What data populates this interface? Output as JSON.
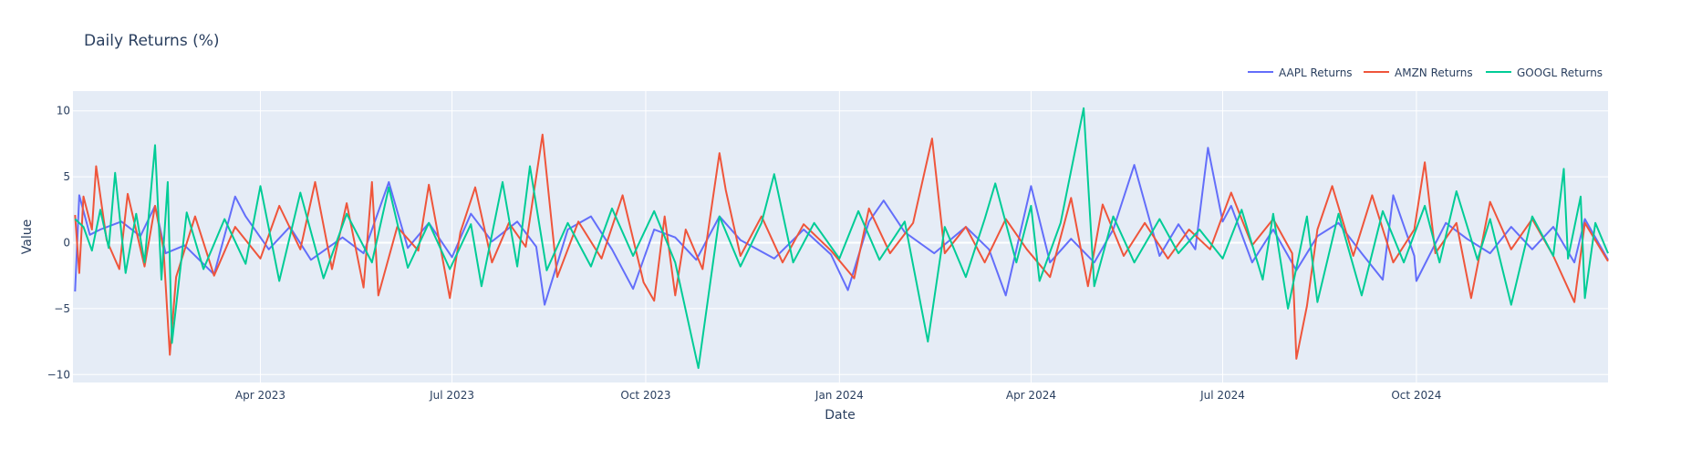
{
  "chart_data": {
    "type": "line",
    "title": "Daily Returns (%)",
    "xlabel": "Date",
    "ylabel": "Value",
    "x_range": [
      "2023-01-02",
      "2024-12-31"
    ],
    "ylim": [
      -10.6,
      11.5
    ],
    "x_ticks": [
      {
        "date": "2023-04-01",
        "label": "Apr 2023"
      },
      {
        "date": "2023-07-01",
        "label": "Jul 2023"
      },
      {
        "date": "2023-10-01",
        "label": "Oct 2023"
      },
      {
        "date": "2024-01-01",
        "label": "Jan 2024"
      },
      {
        "date": "2024-04-01",
        "label": "Apr 2024"
      },
      {
        "date": "2024-07-01",
        "label": "Jul 2024"
      },
      {
        "date": "2024-10-01",
        "label": "Oct 2024"
      }
    ],
    "y_ticks": [
      {
        "value": 10,
        "label": "10"
      },
      {
        "value": 5,
        "label": "5"
      },
      {
        "value": 0,
        "label": "0"
      },
      {
        "value": -5,
        "label": "−5"
      },
      {
        "value": -10,
        "label": "−10"
      }
    ],
    "grid": true,
    "legend_position": "top-right",
    "background": "#E5ECF6",
    "series": [
      {
        "name": "AAPL Returns",
        "color": "#636EFA",
        "points": [
          [
            "2023-01-03",
            -3.7
          ],
          [
            "2023-01-05",
            3.6
          ],
          [
            "2023-01-10",
            0.6
          ],
          [
            "2023-01-15",
            1.0
          ],
          [
            "2023-01-25",
            1.6
          ],
          [
            "2023-02-03",
            0.5
          ],
          [
            "2023-02-10",
            2.8
          ],
          [
            "2023-02-15",
            -0.8
          ],
          [
            "2023-02-24",
            -0.2
          ],
          [
            "2023-03-10",
            -2.4
          ],
          [
            "2023-03-20",
            3.5
          ],
          [
            "2023-03-25",
            2.0
          ],
          [
            "2023-04-05",
            -0.5
          ],
          [
            "2023-04-15",
            1.2
          ],
          [
            "2023-04-25",
            -1.3
          ],
          [
            "2023-05-10",
            0.4
          ],
          [
            "2023-05-20",
            -0.8
          ],
          [
            "2023-06-01",
            4.6
          ],
          [
            "2023-06-10",
            -0.4
          ],
          [
            "2023-06-20",
            1.5
          ],
          [
            "2023-07-01",
            -1.1
          ],
          [
            "2023-07-10",
            2.2
          ],
          [
            "2023-07-20",
            0.1
          ],
          [
            "2023-08-01",
            1.6
          ],
          [
            "2023-08-10",
            -0.3
          ],
          [
            "2023-08-14",
            -4.7
          ],
          [
            "2023-08-25",
            1.0
          ],
          [
            "2023-09-05",
            2.0
          ],
          [
            "2023-09-15",
            -0.5
          ],
          [
            "2023-09-25",
            -3.5
          ],
          [
            "2023-10-05",
            1.0
          ],
          [
            "2023-10-15",
            0.4
          ],
          [
            "2023-10-25",
            -1.3
          ],
          [
            "2023-11-05",
            2.0
          ],
          [
            "2023-11-15",
            0.2
          ],
          [
            "2023-12-01",
            -1.2
          ],
          [
            "2023-12-15",
            1.0
          ],
          [
            "2023-12-28",
            -0.9
          ],
          [
            "2024-01-05",
            -3.6
          ],
          [
            "2024-01-15",
            1.6
          ],
          [
            "2024-01-22",
            3.2
          ],
          [
            "2024-02-01",
            0.8
          ],
          [
            "2024-02-15",
            -0.8
          ],
          [
            "2024-03-01",
            1.2
          ],
          [
            "2024-03-12",
            -0.5
          ],
          [
            "2024-03-20",
            -4.0
          ],
          [
            "2024-04-01",
            4.3
          ],
          [
            "2024-04-10",
            -1.5
          ],
          [
            "2024-04-20",
            0.3
          ],
          [
            "2024-05-01",
            -1.5
          ],
          [
            "2024-05-10",
            1.0
          ],
          [
            "2024-05-20",
            5.9
          ],
          [
            "2024-06-01",
            -1.0
          ],
          [
            "2024-06-10",
            1.4
          ],
          [
            "2024-06-18",
            -0.5
          ],
          [
            "2024-06-24",
            7.2
          ],
          [
            "2024-07-01",
            1.6
          ],
          [
            "2024-07-05",
            2.8
          ],
          [
            "2024-07-15",
            -1.5
          ],
          [
            "2024-07-25",
            1.0
          ],
          [
            "2024-08-05",
            -2.1
          ],
          [
            "2024-08-15",
            0.5
          ],
          [
            "2024-08-25",
            1.5
          ],
          [
            "2024-09-05",
            -0.8
          ],
          [
            "2024-09-15",
            -2.8
          ],
          [
            "2024-09-20",
            3.6
          ],
          [
            "2024-09-30",
            -1.0
          ],
          [
            "2024-10-01",
            -2.9
          ],
          [
            "2024-10-15",
            1.5
          ],
          [
            "2024-10-25",
            0.3
          ],
          [
            "2024-11-05",
            -0.8
          ],
          [
            "2024-11-15",
            1.2
          ],
          [
            "2024-11-25",
            -0.5
          ],
          [
            "2024-12-05",
            1.2
          ],
          [
            "2024-12-15",
            -1.5
          ],
          [
            "2024-12-20",
            1.8
          ],
          [
            "2024-12-31",
            -1.3
          ]
        ]
      },
      {
        "name": "AMZN Returns",
        "color": "#EF553B",
        "points": [
          [
            "2023-01-03",
            2.1
          ],
          [
            "2023-01-05",
            -2.3
          ],
          [
            "2023-01-07",
            3.5
          ],
          [
            "2023-01-11",
            1.0
          ],
          [
            "2023-01-13",
            5.8
          ],
          [
            "2023-01-18",
            0.2
          ],
          [
            "2023-01-24",
            -2.0
          ],
          [
            "2023-01-28",
            3.7
          ],
          [
            "2023-02-05",
            -1.8
          ],
          [
            "2023-02-10",
            2.8
          ],
          [
            "2023-02-14",
            -0.5
          ],
          [
            "2023-02-17",
            -8.5
          ],
          [
            "2023-02-20",
            -2.6
          ],
          [
            "2023-03-01",
            2.0
          ],
          [
            "2023-03-10",
            -2.5
          ],
          [
            "2023-03-20",
            1.2
          ],
          [
            "2023-04-01",
            -1.2
          ],
          [
            "2023-04-10",
            2.8
          ],
          [
            "2023-04-20",
            -0.5
          ],
          [
            "2023-04-27",
            4.6
          ],
          [
            "2023-05-05",
            -2.0
          ],
          [
            "2023-05-12",
            3.0
          ],
          [
            "2023-05-20",
            -3.4
          ],
          [
            "2023-05-24",
            4.6
          ],
          [
            "2023-05-27",
            -4.0
          ],
          [
            "2023-06-05",
            1.2
          ],
          [
            "2023-06-15",
            -0.6
          ],
          [
            "2023-06-20",
            4.4
          ],
          [
            "2023-06-30",
            -4.2
          ],
          [
            "2023-07-05",
            0.8
          ],
          [
            "2023-07-12",
            4.2
          ],
          [
            "2023-07-20",
            -1.5
          ],
          [
            "2023-07-28",
            1.5
          ],
          [
            "2023-08-05",
            -0.3
          ],
          [
            "2023-08-13",
            8.2
          ],
          [
            "2023-08-20",
            -2.6
          ],
          [
            "2023-08-30",
            1.6
          ],
          [
            "2023-09-10",
            -1.2
          ],
          [
            "2023-09-20",
            3.6
          ],
          [
            "2023-09-30",
            -3.0
          ],
          [
            "2023-10-05",
            -4.4
          ],
          [
            "2023-10-10",
            2.0
          ],
          [
            "2023-10-15",
            -4.0
          ],
          [
            "2023-10-20",
            1.0
          ],
          [
            "2023-10-28",
            -2.0
          ],
          [
            "2023-11-05",
            6.8
          ],
          [
            "2023-11-08",
            4.0
          ],
          [
            "2023-11-15",
            -1.0
          ],
          [
            "2023-11-25",
            2.0
          ],
          [
            "2023-12-05",
            -1.5
          ],
          [
            "2023-12-15",
            1.4
          ],
          [
            "2023-12-28",
            -0.6
          ],
          [
            "2024-01-08",
            -2.7
          ],
          [
            "2024-01-15",
            2.6
          ],
          [
            "2024-01-25",
            -0.8
          ],
          [
            "2024-02-05",
            1.5
          ],
          [
            "2024-02-14",
            7.9
          ],
          [
            "2024-02-20",
            -0.8
          ],
          [
            "2024-03-01",
            1.2
          ],
          [
            "2024-03-10",
            -1.5
          ],
          [
            "2024-03-20",
            1.8
          ],
          [
            "2024-03-30",
            -0.5
          ],
          [
            "2024-04-10",
            -2.6
          ],
          [
            "2024-04-20",
            3.4
          ],
          [
            "2024-04-28",
            -3.3
          ],
          [
            "2024-05-05",
            2.9
          ],
          [
            "2024-05-15",
            -1.0
          ],
          [
            "2024-05-25",
            1.5
          ],
          [
            "2024-06-05",
            -1.2
          ],
          [
            "2024-06-15",
            1.0
          ],
          [
            "2024-06-25",
            -0.5
          ],
          [
            "2024-07-05",
            3.8
          ],
          [
            "2024-07-15",
            -0.2
          ],
          [
            "2024-07-25",
            1.8
          ],
          [
            "2024-08-03",
            -0.8
          ],
          [
            "2024-08-05",
            -8.8
          ],
          [
            "2024-08-10",
            -4.8
          ],
          [
            "2024-08-15",
            1.0
          ],
          [
            "2024-08-22",
            4.3
          ],
          [
            "2024-09-01",
            -1.0
          ],
          [
            "2024-09-10",
            3.6
          ],
          [
            "2024-09-20",
            -1.5
          ],
          [
            "2024-09-30",
            1.0
          ],
          [
            "2024-10-05",
            6.1
          ],
          [
            "2024-10-10",
            -0.8
          ],
          [
            "2024-10-20",
            1.5
          ],
          [
            "2024-10-27",
            -4.2
          ],
          [
            "2024-11-05",
            3.1
          ],
          [
            "2024-11-15",
            -0.5
          ],
          [
            "2024-11-25",
            1.8
          ],
          [
            "2024-12-05",
            -1.0
          ],
          [
            "2024-12-15",
            -4.5
          ],
          [
            "2024-12-20",
            1.5
          ],
          [
            "2024-12-31",
            -1.4
          ]
        ]
      },
      {
        "name": "GOOGL Returns",
        "color": "#00CC96",
        "points": [
          [
            "2023-01-03",
            1.8
          ],
          [
            "2023-01-07",
            1.2
          ],
          [
            "2023-01-11",
            -0.6
          ],
          [
            "2023-01-15",
            2.5
          ],
          [
            "2023-01-19",
            -0.4
          ],
          [
            "2023-01-22",
            5.3
          ],
          [
            "2023-01-27",
            -2.3
          ],
          [
            "2023-02-01",
            2.2
          ],
          [
            "2023-02-05",
            -1.5
          ],
          [
            "2023-02-10",
            7.4
          ],
          [
            "2023-02-13",
            -2.8
          ],
          [
            "2023-02-16",
            4.6
          ],
          [
            "2023-02-18",
            -7.6
          ],
          [
            "2023-02-25",
            2.3
          ],
          [
            "2023-03-05",
            -2.0
          ],
          [
            "2023-03-15",
            1.8
          ],
          [
            "2023-03-25",
            -1.6
          ],
          [
            "2023-04-01",
            4.3
          ],
          [
            "2023-04-10",
            -2.9
          ],
          [
            "2023-04-20",
            3.8
          ],
          [
            "2023-05-01",
            -2.7
          ],
          [
            "2023-05-12",
            2.2
          ],
          [
            "2023-05-24",
            -1.5
          ],
          [
            "2023-06-01",
            4.2
          ],
          [
            "2023-06-10",
            -1.9
          ],
          [
            "2023-06-20",
            1.5
          ],
          [
            "2023-06-30",
            -2.0
          ],
          [
            "2023-07-10",
            1.4
          ],
          [
            "2023-07-15",
            -3.3
          ],
          [
            "2023-07-25",
            4.6
          ],
          [
            "2023-08-01",
            -1.8
          ],
          [
            "2023-08-07",
            5.8
          ],
          [
            "2023-08-15",
            -2.1
          ],
          [
            "2023-08-25",
            1.5
          ],
          [
            "2023-09-05",
            -1.8
          ],
          [
            "2023-09-15",
            2.6
          ],
          [
            "2023-09-25",
            -1.0
          ],
          [
            "2023-10-05",
            2.4
          ],
          [
            "2023-10-15",
            -1.5
          ],
          [
            "2023-10-26",
            -9.5
          ],
          [
            "2023-11-05",
            2.0
          ],
          [
            "2023-11-15",
            -1.8
          ],
          [
            "2023-11-25",
            1.5
          ],
          [
            "2023-12-01",
            5.2
          ],
          [
            "2023-12-10",
            -1.5
          ],
          [
            "2023-12-20",
            1.5
          ],
          [
            "2024-01-01",
            -1.2
          ],
          [
            "2024-01-10",
            2.4
          ],
          [
            "2024-01-20",
            -1.3
          ],
          [
            "2024-02-01",
            1.6
          ],
          [
            "2024-02-12",
            -7.5
          ],
          [
            "2024-02-20",
            1.2
          ],
          [
            "2024-03-01",
            -2.6
          ],
          [
            "2024-03-10",
            1.8
          ],
          [
            "2024-03-15",
            4.5
          ],
          [
            "2024-03-25",
            -1.5
          ],
          [
            "2024-04-01",
            2.8
          ],
          [
            "2024-04-05",
            -2.9
          ],
          [
            "2024-04-15",
            1.5
          ],
          [
            "2024-04-26",
            10.2
          ],
          [
            "2024-05-01",
            -3.3
          ],
          [
            "2024-05-10",
            2.0
          ],
          [
            "2024-05-20",
            -1.5
          ],
          [
            "2024-06-01",
            1.8
          ],
          [
            "2024-06-10",
            -0.8
          ],
          [
            "2024-06-20",
            1.0
          ],
          [
            "2024-07-01",
            -1.2
          ],
          [
            "2024-07-10",
            2.5
          ],
          [
            "2024-07-20",
            -2.8
          ],
          [
            "2024-07-25",
            2.2
          ],
          [
            "2024-08-01",
            -5.0
          ],
          [
            "2024-08-10",
            2.0
          ],
          [
            "2024-08-15",
            -4.5
          ],
          [
            "2024-08-25",
            2.2
          ],
          [
            "2024-09-05",
            -4.0
          ],
          [
            "2024-09-15",
            2.4
          ],
          [
            "2024-09-25",
            -1.5
          ],
          [
            "2024-10-05",
            2.8
          ],
          [
            "2024-10-12",
            -1.5
          ],
          [
            "2024-10-20",
            3.9
          ],
          [
            "2024-10-30",
            -1.3
          ],
          [
            "2024-11-05",
            1.8
          ],
          [
            "2024-11-15",
            -4.7
          ],
          [
            "2024-11-25",
            2.0
          ],
          [
            "2024-12-05",
            -1.0
          ],
          [
            "2024-12-10",
            5.6
          ],
          [
            "2024-12-12",
            -1.2
          ],
          [
            "2024-12-18",
            3.5
          ],
          [
            "2024-12-20",
            -4.2
          ],
          [
            "2024-12-25",
            1.5
          ],
          [
            "2024-12-31",
            -0.8
          ]
        ]
      }
    ]
  }
}
